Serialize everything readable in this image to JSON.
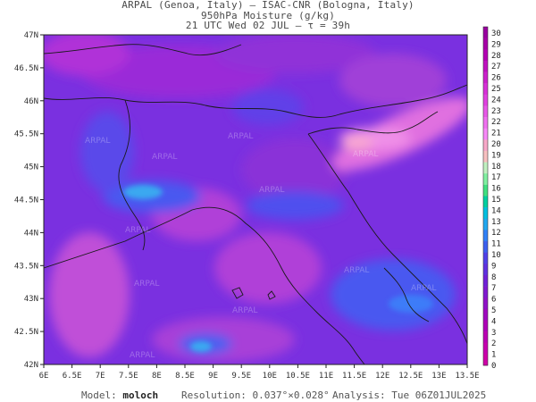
{
  "header": {
    "line1": "ARPAL (Genoa, Italy)  —  ISAC-CNR (Bologna, Italy)",
    "line2": "950hPa Moisture (g/kg)",
    "line3": "21 UTC Wed 02 JUL  –  τ = 39h"
  },
  "map": {
    "lon_labels": [
      "6E",
      "6.5E",
      "7E",
      "7.5E",
      "8E",
      "8.5E",
      "9E",
      "9.5E",
      "10E",
      "10.5E",
      "11E",
      "11.5E",
      "12E",
      "12.5E",
      "13E",
      "13.5E"
    ],
    "lat_labels": [
      "47N",
      "46.5N",
      "46N",
      "45.5N",
      "45N",
      "44.5N",
      "44N",
      "43.5N",
      "43N",
      "42.5N",
      "42N"
    ],
    "watermark": "ARPAL"
  },
  "colorbar": {
    "labels": [
      "30",
      "29",
      "28",
      "27",
      "26",
      "25",
      "24",
      "23",
      "22",
      "21",
      "20",
      "19",
      "18",
      "17",
      "16",
      "15",
      "14",
      "13",
      "12",
      "11",
      "10",
      "9",
      "8",
      "7",
      "6",
      "5",
      "4",
      "3",
      "2",
      "1",
      "0"
    ],
    "colors": [
      "#9a00a0",
      "#a800a8",
      "#b400b4",
      "#c010c0",
      "#cc20cc",
      "#d830d8",
      "#e040e0",
      "#e858e8",
      "#f070f0",
      "#f888f8",
      "#f8a8c8",
      "#f8c0c0",
      "#c0f0c0",
      "#80f0a0",
      "#40e080",
      "#00d0a0",
      "#00c0e0",
      "#20a8f0",
      "#3080f8",
      "#3c60f0",
      "#5040e8",
      "#6030e0",
      "#7020d8",
      "#8018d0",
      "#9010c8",
      "#a008c0",
      "#b000b8",
      "#bc00b4",
      "#c800b0",
      "#d000a8"
    ]
  },
  "footer": {
    "model_label": "Model:",
    "model_value": "moloch",
    "resolution_label": "Resolution:",
    "resolution_value": "0.037°×0.028°",
    "analysis_label": "Analysis:",
    "analysis_value": "Tue 06Z01JUL2025"
  },
  "colors": {
    "field_base": "#7a30e0",
    "coast": "#1a1a1a"
  }
}
